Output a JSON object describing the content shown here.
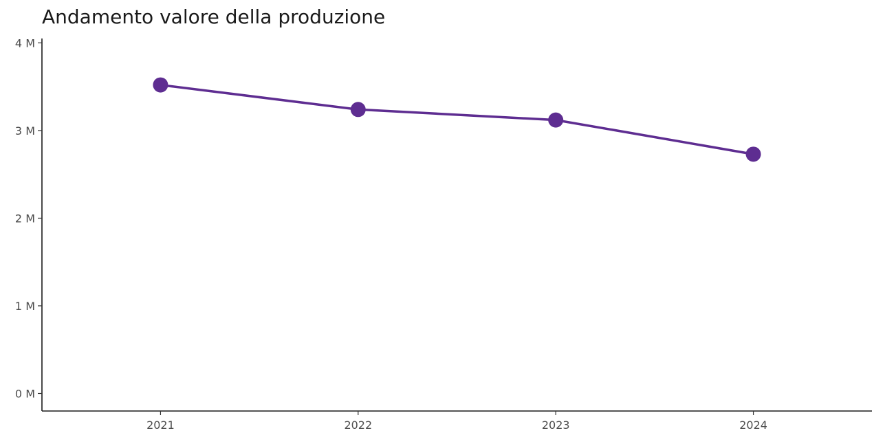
{
  "chart_data": {
    "type": "line",
    "title": "Andamento valore della produzione",
    "xlabel": "",
    "ylabel": "",
    "categories": [
      "2021",
      "2022",
      "2023",
      "2024"
    ],
    "series": [
      {
        "values": [
          3520000,
          3240000,
          3120000,
          2730000
        ],
        "color": "#5e2d91"
      }
    ],
    "yticks": [
      {
        "value": 0,
        "label": "0 M"
      },
      {
        "value": 1000000,
        "label": "1 M"
      },
      {
        "value": 2000000,
        "label": "2 M"
      },
      {
        "value": 3000000,
        "label": "3 M"
      },
      {
        "value": 4000000,
        "label": "4 M"
      }
    ],
    "ylim": [
      -200000,
      4050000
    ],
    "grid": false,
    "legend": "none"
  }
}
